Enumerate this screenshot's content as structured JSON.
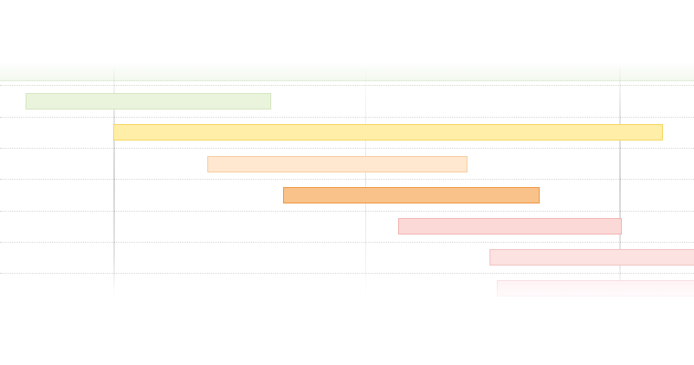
{
  "timeline": {
    "colors": {
      "header_band": "#f3f9ee",
      "grid_dotted": "#d7d7d7"
    },
    "bars": [
      {
        "name": "bar-1",
        "fill": "#eaf4dd",
        "stroke": "#d4e6c0"
      },
      {
        "name": "bar-2",
        "fill": "#ffeea8",
        "stroke": "#f5d866"
      },
      {
        "name": "bar-3",
        "fill": "#ffe8cf",
        "stroke": "#f6cfa4"
      },
      {
        "name": "bar-4",
        "fill": "#f9c28a",
        "stroke": "#ee9a45"
      },
      {
        "name": "bar-5",
        "fill": "#fbd9d7",
        "stroke": "#f1b6b3"
      },
      {
        "name": "bar-6",
        "fill": "#fce2e1",
        "stroke": "#f2c3c1"
      },
      {
        "name": "bar-7",
        "fill": "#fdeff2",
        "stroke": "#f4d6dd"
      }
    ]
  }
}
